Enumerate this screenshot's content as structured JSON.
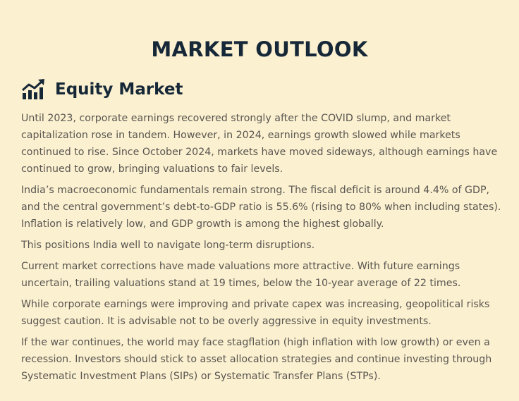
{
  "header": {
    "title": "MARKET OUTLOOK"
  },
  "section": {
    "heading": "Equity Market",
    "paragraphs": [
      [
        "Until 2023, corporate earnings recovered strongly after the COVID slump, and market",
        "capitalization rose in tandem. However, in 2024, earnings growth slowed while markets",
        "continued to rise. Since October 2024, markets have moved sideways, although earnings have",
        "continued to grow, bringing valuations to fair levels."
      ],
      [
        "India’s macroeconomic fundamentals remain strong. The fiscal deficit is around 4.4% of GDP,",
        "and the central government’s debt-to-GDP ratio is 55.6% (rising to 80% when including states).",
        "Inflation is relatively low, and GDP growth is among the highest globally."
      ],
      [
        "This positions India well to navigate long-term disruptions."
      ],
      [
        "Current market corrections have made valuations more attractive. With future earnings",
        "uncertain, trailing valuations stand at 19 times, below the 10-year average of 22 times."
      ],
      [
        "While corporate earnings were improving and private capex was increasing, geopolitical risks",
        "suggest caution. It is advisable not to be overly aggressive in equity investments."
      ],
      [
        "If the war continues, the world may face stagflation (high inflation with low growth) or even a",
        "recession. Investors should stick to asset allocation strategies and continue investing through",
        "Systematic Investment Plans (SIPs) or Systematic Transfer Plans (STPs)."
      ]
    ]
  }
}
